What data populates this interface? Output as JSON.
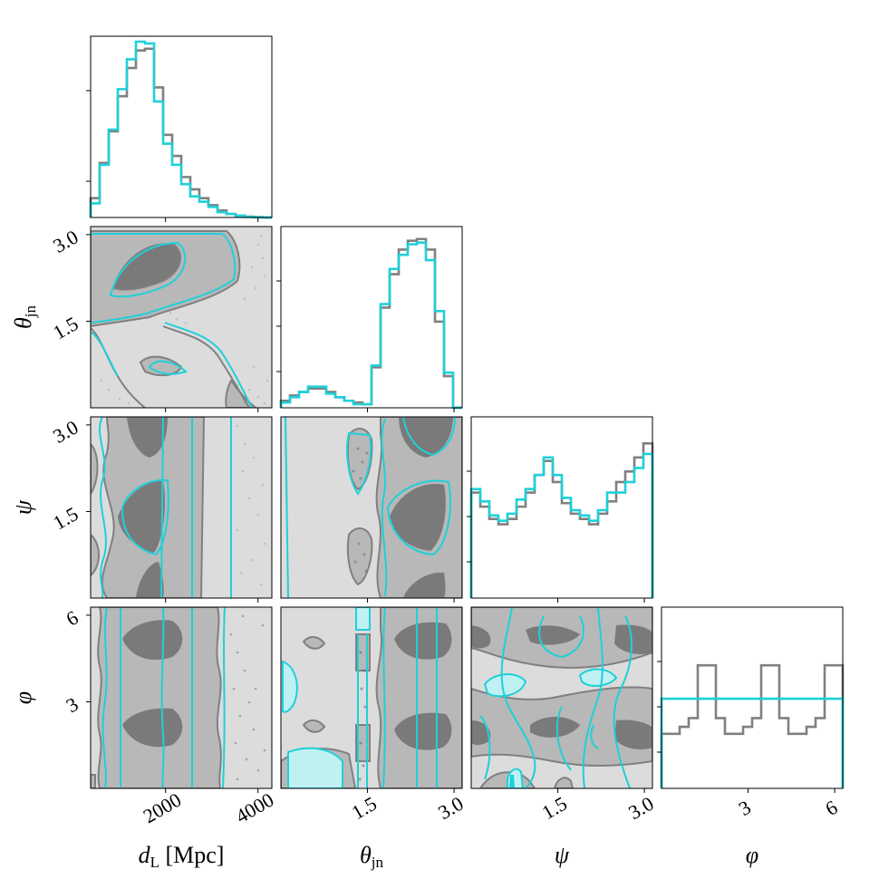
{
  "chart_data": {
    "type": "corner",
    "parameters": [
      {
        "label": "d",
        "sub": "L",
        "unit": " [Mpc]",
        "range": [
          380,
          4300
        ],
        "ticks": [
          2000,
          4000
        ],
        "tick_labels": [
          "2000",
          "4000"
        ]
      },
      {
        "label": "θ",
        "sub": "jn",
        "unit": "",
        "range": [
          0.0,
          3.14
        ],
        "ticks": [
          1.5,
          3.0
        ],
        "tick_labels": [
          "1.5",
          "3.0"
        ]
      },
      {
        "label": "ψ",
        "sub": "",
        "unit": "",
        "range": [
          0.0,
          3.14
        ],
        "ticks": [
          1.5,
          3.0
        ],
        "tick_labels": [
          "1.5",
          "3.0"
        ]
      },
      {
        "label": "φ",
        "sub": "",
        "unit": "",
        "range": [
          0.0,
          6.28
        ],
        "ticks": [
          3,
          6
        ],
        "tick_labels": [
          "3",
          "6"
        ]
      }
    ],
    "series_colors": {
      "posterior_a": "#808080",
      "posterior_b": "#1fd0d8"
    },
    "fill_levels": [
      "#dcdcdc",
      "#b8b8b8",
      "#7a7a7a"
    ],
    "histograms": [
      {
        "edges_start": 380,
        "edges_end": 4300,
        "bins": 20,
        "a": [
          0.11,
          0.31,
          0.49,
          0.69,
          0.85,
          0.95,
          0.96,
          0.74,
          0.47,
          0.35,
          0.23,
          0.16,
          0.11,
          0.07,
          0.04,
          0.02,
          0.01,
          0.005,
          0.002,
          0.0
        ],
        "b": [
          0.08,
          0.3,
          0.5,
          0.73,
          0.9,
          1.0,
          0.99,
          0.66,
          0.42,
          0.3,
          0.19,
          0.12,
          0.09,
          0.06,
          0.03,
          0.02,
          0.01,
          0.003,
          0.001,
          0.0
        ]
      },
      {
        "edges_start": 0.0,
        "edges_end": 3.14,
        "bins": 20,
        "a": [
          0.04,
          0.07,
          0.09,
          0.11,
          0.11,
          0.09,
          0.06,
          0.04,
          0.03,
          0.02,
          0.23,
          0.57,
          0.76,
          0.9,
          0.95,
          0.96,
          0.9,
          0.49,
          0.18,
          0.0
        ],
        "b": [
          0.03,
          0.06,
          0.09,
          0.12,
          0.12,
          0.08,
          0.06,
          0.04,
          0.02,
          0.02,
          0.24,
          0.59,
          0.79,
          0.87,
          0.93,
          0.94,
          0.84,
          0.55,
          0.2,
          0.0
        ]
      },
      {
        "edges_start": 0.0,
        "edges_end": 3.14,
        "bins": 20,
        "a": [
          0.6,
          0.52,
          0.45,
          0.42,
          0.45,
          0.52,
          0.6,
          0.7,
          0.78,
          0.66,
          0.54,
          0.48,
          0.45,
          0.42,
          0.48,
          0.55,
          0.66,
          0.72,
          0.8,
          0.88
        ],
        "b": [
          0.62,
          0.55,
          0.47,
          0.44,
          0.48,
          0.56,
          0.62,
          0.7,
          0.8,
          0.7,
          0.57,
          0.5,
          0.47,
          0.44,
          0.5,
          0.6,
          0.6,
          0.66,
          0.74,
          0.82
        ]
      },
      {
        "edges_start": 0.0,
        "edges_end": 6.28,
        "bins": 20,
        "a": [
          0.31,
          0.31,
          0.35,
          0.4,
          0.7,
          0.7,
          0.4,
          0.31,
          0.31,
          0.35,
          0.4,
          0.7,
          0.7,
          0.4,
          0.31,
          0.31,
          0.35,
          0.4,
          0.7,
          0.7
        ],
        "b": [
          0.51,
          0.51,
          0.51,
          0.51,
          0.51,
          0.51,
          0.51,
          0.51,
          0.51,
          0.51,
          0.51,
          0.51,
          0.51,
          0.51,
          0.51,
          0.51,
          0.51,
          0.51,
          0.51,
          0.51
        ]
      }
    ]
  }
}
